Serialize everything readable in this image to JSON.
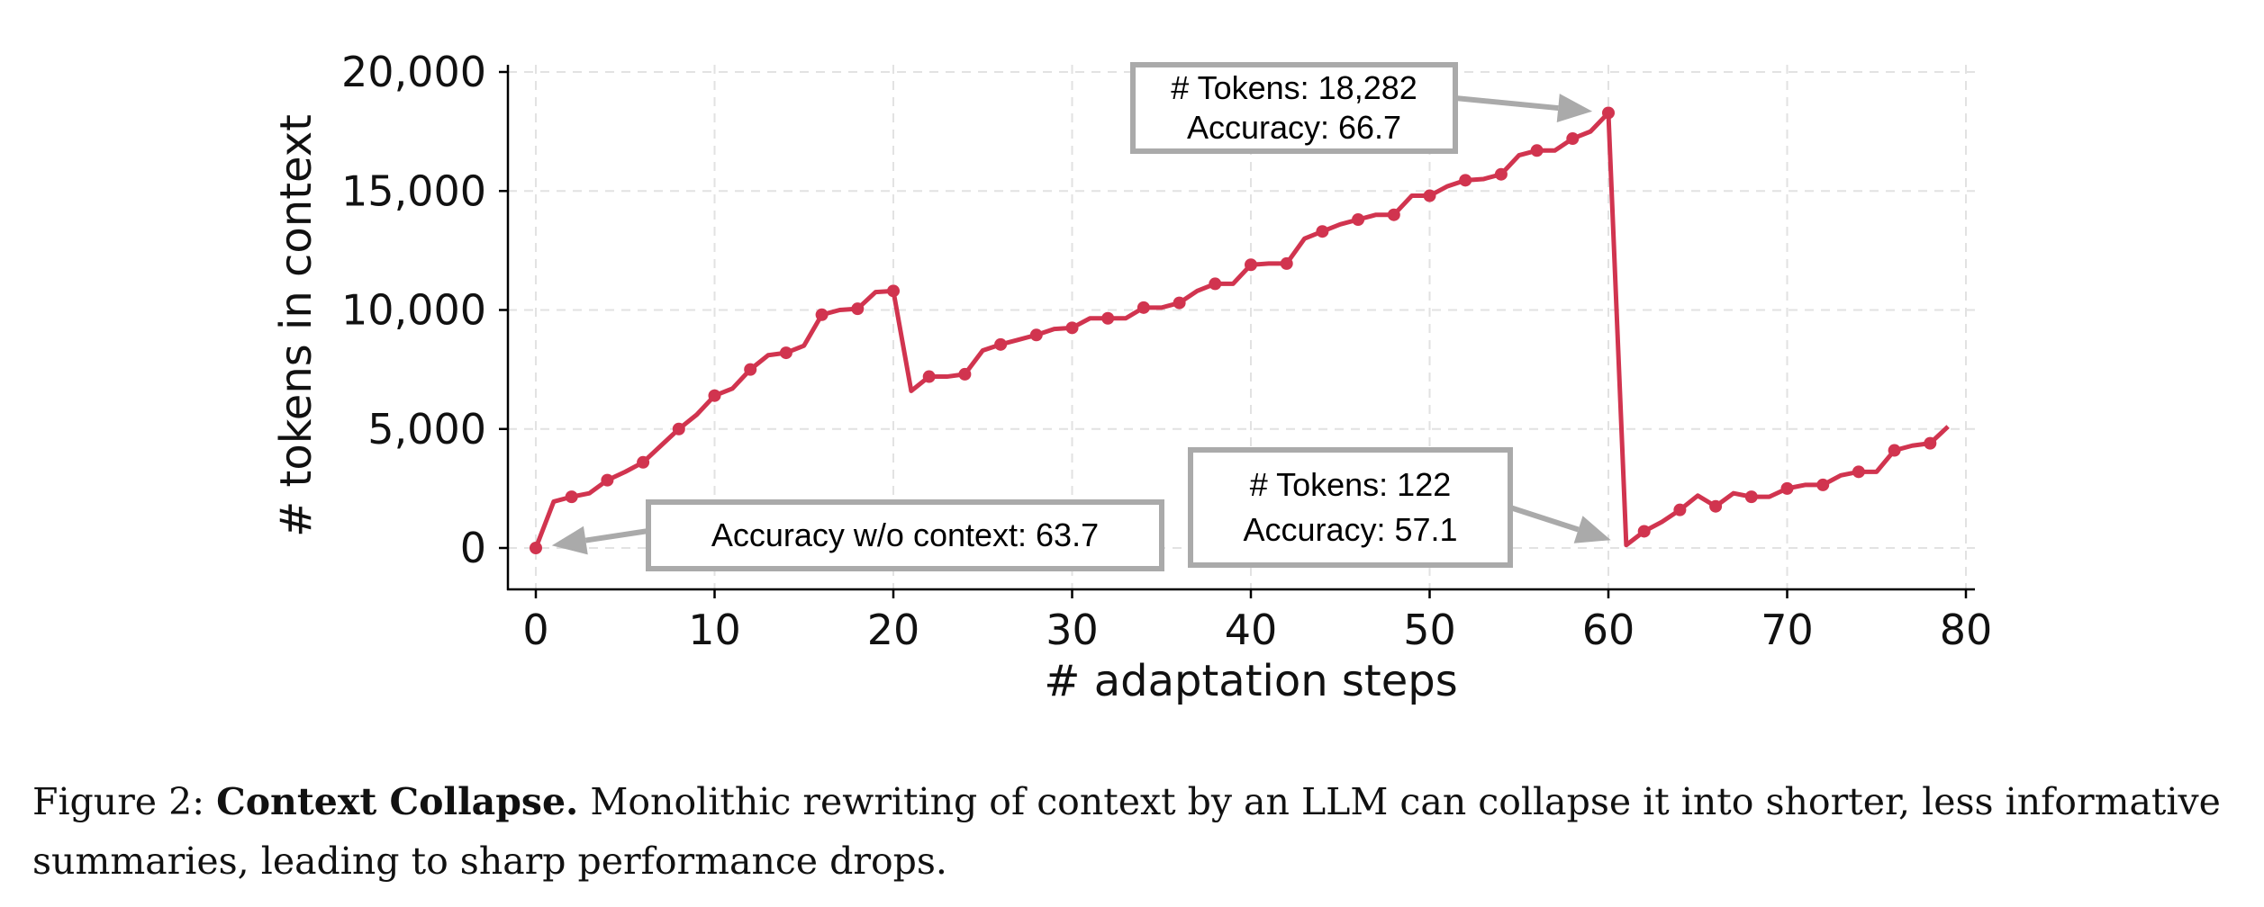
{
  "chart_data": {
    "type": "line",
    "title": "",
    "xlabel": "# adaptation steps",
    "ylabel": "# tokens in context",
    "xlim": [
      -1,
      81
    ],
    "ylim": [
      -1800,
      20000
    ],
    "xticks": [
      0,
      10,
      20,
      30,
      40,
      50,
      60,
      70,
      80
    ],
    "xtick_labels": [
      "0",
      "10",
      "20",
      "30",
      "40",
      "50",
      "60",
      "70",
      "80"
    ],
    "yticks": [
      0,
      5000,
      10000,
      15000,
      20000
    ],
    "ytick_labels": [
      "0",
      "5,000",
      "10,000",
      "15,000",
      "20,000"
    ],
    "grid": true,
    "color": "#d1344f",
    "series": [
      {
        "name": "tokens",
        "x": [
          0,
          1,
          2,
          3,
          4,
          5,
          6,
          7,
          8,
          9,
          10,
          11,
          12,
          13,
          14,
          15,
          16,
          17,
          18,
          19,
          20,
          21,
          22,
          23,
          24,
          25,
          26,
          27,
          28,
          29,
          30,
          31,
          32,
          33,
          34,
          35,
          36,
          37,
          38,
          39,
          40,
          41,
          42,
          43,
          44,
          45,
          46,
          47,
          48,
          49,
          50,
          51,
          52,
          53,
          54,
          55,
          56,
          57,
          58,
          59,
          60,
          61,
          62,
          63,
          64,
          65,
          66,
          67,
          68,
          69,
          70,
          71,
          72,
          73,
          74,
          75,
          76,
          77,
          78,
          79
        ],
        "values": [
          0,
          1950,
          2150,
          2300,
          2850,
          3200,
          3600,
          4300,
          5000,
          5600,
          6400,
          6700,
          7500,
          8100,
          8200,
          8500,
          9800,
          10000,
          10050,
          10750,
          10800,
          6600,
          7200,
          7200,
          7300,
          8300,
          8550,
          8750,
          8950,
          9200,
          9250,
          9650,
          9650,
          9650,
          10100,
          10100,
          10300,
          10800,
          11100,
          11100,
          11900,
          11950,
          11950,
          13000,
          13300,
          13600,
          13800,
          14000,
          14000,
          14800,
          14800,
          15200,
          15450,
          15500,
          15700,
          16500,
          16700,
          16700,
          17200,
          17500,
          18282,
          122,
          700,
          1100,
          1600,
          2200,
          1750,
          2300,
          2150,
          2150,
          2500,
          2650,
          2650,
          3050,
          3200,
          3200,
          4100,
          4300,
          4400,
          5100
        ],
        "marker_every": 2
      }
    ],
    "annotations": [
      {
        "lines": [
          "# Tokens: 18,282",
          "Accuracy: 66.7"
        ],
        "target": [
          60,
          18282
        ]
      },
      {
        "lines": [
          "# Tokens: 122",
          "Accuracy: 57.1"
        ],
        "target": [
          61,
          122
        ]
      },
      {
        "lines": [
          "Accuracy w/o context: 63.7"
        ],
        "target": [
          0,
          0
        ]
      }
    ]
  },
  "caption": {
    "label": "Figure 2:",
    "bold": "Context Collapse.",
    "text": "Monolithic rewriting of context by an LLM can collapse it into shorter, less informative summaries, leading to sharp performance drops."
  }
}
